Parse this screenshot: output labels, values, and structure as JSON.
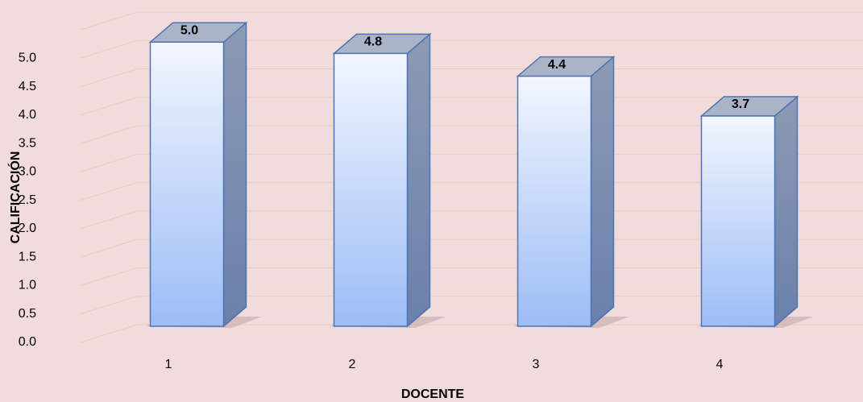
{
  "chart_data": {
    "type": "bar3d",
    "categories": [
      "1",
      "2",
      "3",
      "4"
    ],
    "values": [
      5.0,
      4.8,
      4.4,
      3.7
    ],
    "value_labels": [
      "5.0",
      "4.8",
      "4.4",
      "3.7"
    ],
    "x_label": "DOCENTE",
    "y_label": "CALIFICACIÓN",
    "ylim": [
      0,
      5.5
    ],
    "yticks": [
      {
        "value": 0,
        "label": "0.0"
      },
      {
        "value": 0.5,
        "label": "0.5"
      },
      {
        "value": 1,
        "label": "1.0"
      },
      {
        "value": 1.5,
        "label": "1.5"
      },
      {
        "value": 2,
        "label": "2.0"
      },
      {
        "value": 2.5,
        "label": "2.5"
      },
      {
        "value": 3,
        "label": "3.0"
      },
      {
        "value": 3.5,
        "label": "3.5"
      },
      {
        "value": 4,
        "label": "4.0"
      },
      {
        "value": 4.5,
        "label": "4.5"
      },
      {
        "value": 5,
        "label": "5.0"
      }
    ],
    "grid": true,
    "color": "#9dbcf5"
  }
}
